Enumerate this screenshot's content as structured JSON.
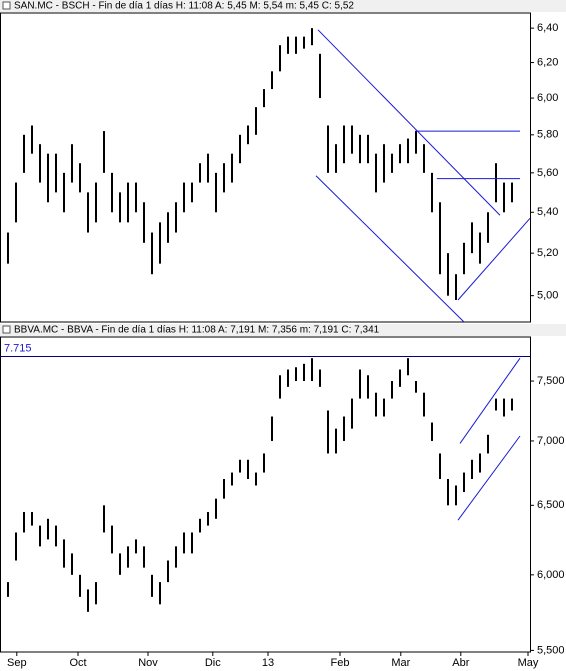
{
  "chart_data": [
    {
      "type": "range-bar",
      "title": "SAN.MC - BSCH - Fin de día 1 días H: 11:08 A: 5,45 M: 5,54 m: 5,45 C: 5,52",
      "log_scale": true,
      "color": "#000000",
      "xlim": [
        -1,
        65.25
      ],
      "ylim": [
        4.88,
        6.49
      ],
      "yticks": [
        {
          "value": 6.4,
          "label": "6,40"
        },
        {
          "value": 6.2,
          "label": "6,20"
        },
        {
          "value": 6,
          "label": "6,00"
        },
        {
          "value": 5.8,
          "label": "5,80"
        },
        {
          "value": 5.6,
          "label": "5,60"
        },
        {
          "value": 5.4,
          "label": "5,40"
        },
        {
          "value": 5.2,
          "label": "5,20"
        },
        {
          "value": 5,
          "label": "5,00"
        }
      ],
      "lows": [
        5.15,
        5.35,
        5.6,
        5.7,
        5.55,
        5.45,
        5.5,
        5.4,
        5.55,
        5.5,
        5.3,
        5.35,
        5.6,
        5.4,
        5.35,
        5.35,
        5.4,
        5.25,
        5.1,
        5.15,
        5.25,
        5.3,
        5.4,
        5.45,
        5.55,
        5.55,
        5.4,
        5.5,
        5.55,
        5.65,
        5.75,
        5.8,
        5.95,
        6.05,
        6.15,
        6.25,
        6.25,
        6.28,
        6.3,
        6.0,
        5.6,
        5.6,
        5.65,
        5.7,
        5.65,
        5.65,
        5.5,
        5.55,
        5.6,
        5.65,
        5.65,
        5.7,
        5.6,
        5.4,
        5.1,
        5.0,
        4.98,
        5.1,
        5.2,
        5.15,
        5.25,
        5.45,
        5.4,
        5.45
      ],
      "highs": [
        5.3,
        5.55,
        5.8,
        5.85,
        5.75,
        5.7,
        5.7,
        5.6,
        5.75,
        5.65,
        5.5,
        5.55,
        5.82,
        5.6,
        5.5,
        5.55,
        5.55,
        5.45,
        5.3,
        5.35,
        5.4,
        5.45,
        5.55,
        5.55,
        5.65,
        5.7,
        5.6,
        5.65,
        5.7,
        5.8,
        5.85,
        5.95,
        6.05,
        6.15,
        6.3,
        6.35,
        6.35,
        6.35,
        6.4,
        6.25,
        5.85,
        5.75,
        5.85,
        5.85,
        5.8,
        5.8,
        5.7,
        5.75,
        5.7,
        5.75,
        5.78,
        5.82,
        5.75,
        5.6,
        5.45,
        5.2,
        5.1,
        5.25,
        5.35,
        5.3,
        5.4,
        5.65,
        5.55,
        5.55
      ],
      "lines": [
        {
          "color": "#1a1ad6",
          "points": [
            [
              38.75,
              6.39
            ],
            [
              61.5,
              5.385
            ]
          ]
        },
        {
          "color": "#1a1ad6",
          "points": [
            [
              38.5,
              5.585
            ],
            [
              57,
              4.88
            ]
          ]
        },
        {
          "color": "#1a1ad6",
          "points": [
            [
              50.9,
              5.82
            ],
            [
              64,
              5.82
            ]
          ]
        },
        {
          "color": "#1a1ad6",
          "points": [
            [
              53.6,
              5.57
            ],
            [
              64,
              5.57
            ]
          ]
        },
        {
          "color": "#1a1ad6",
          "points": [
            [
              56.25,
              4.98
            ],
            [
              65.25,
              5.37
            ]
          ]
        }
      ]
    },
    {
      "type": "range-bar",
      "title": "BBVA.MC - BBVA - Fin de día 1 días H: 11:08 A: 7,191 M: 7,356 m: 7,191 C: 7,341",
      "log_scale": true,
      "color": "#000000",
      "xlim": [
        -1,
        65.25
      ],
      "ylim": [
        5.49,
        7.89
      ],
      "yticks": [
        {
          "value": 7.5,
          "label": "7,500"
        },
        {
          "value": 7,
          "label": "7,000"
        },
        {
          "value": 6.5,
          "label": "6,500"
        },
        {
          "value": 6,
          "label": "6,000"
        },
        {
          "value": 5.5,
          "label": "5,500"
        }
      ],
      "xticks": [
        {
          "value": 1.1,
          "label": "Sep"
        },
        {
          "value": 8.75,
          "label": "Oct"
        },
        {
          "value": 17.5,
          "label": "Nov"
        },
        {
          "value": 25.6,
          "label": "Dic"
        },
        {
          "value": 32.5,
          "label": "13"
        },
        {
          "value": 41.5,
          "label": "Feb"
        },
        {
          "value": 49.1,
          "label": "Mar"
        },
        {
          "value": 56.6,
          "label": "Abr"
        },
        {
          "value": 65,
          "label": "May"
        }
      ],
      "reference_line": {
        "value": 7.715,
        "label": "7.715",
        "color": "#000080"
      },
      "lows": [
        5.85,
        6.1,
        6.3,
        6.35,
        6.2,
        6.25,
        6.2,
        6.05,
        6.0,
        5.85,
        5.75,
        5.8,
        6.3,
        6.15,
        6.0,
        6.05,
        6.15,
        6.05,
        5.85,
        5.8,
        5.95,
        6.05,
        6.15,
        6.15,
        6.3,
        6.35,
        6.4,
        6.55,
        6.65,
        6.75,
        6.7,
        6.65,
        6.75,
        7.0,
        7.35,
        7.45,
        7.5,
        7.5,
        7.5,
        7.45,
        6.9,
        6.9,
        7.0,
        7.1,
        7.35,
        7.35,
        7.2,
        7.2,
        7.35,
        7.45,
        7.55,
        7.4,
        7.2,
        7.0,
        6.7,
        6.5,
        6.5,
        6.6,
        6.7,
        6.75,
        6.9,
        7.25,
        7.2,
        7.25
      ],
      "highs": [
        5.95,
        6.3,
        6.45,
        6.45,
        6.35,
        6.4,
        6.35,
        6.25,
        6.15,
        6.0,
        5.9,
        5.95,
        6.5,
        6.35,
        6.15,
        6.2,
        6.25,
        6.2,
        6.0,
        5.95,
        6.1,
        6.2,
        6.3,
        6.3,
        6.4,
        6.45,
        6.55,
        6.7,
        6.75,
        6.85,
        6.85,
        6.75,
        6.9,
        7.2,
        7.55,
        7.6,
        7.62,
        7.65,
        7.7,
        7.6,
        7.25,
        7.1,
        7.2,
        7.35,
        7.6,
        7.55,
        7.4,
        7.35,
        7.5,
        7.6,
        7.7,
        7.5,
        7.4,
        7.15,
        6.9,
        6.7,
        6.65,
        6.75,
        6.85,
        6.9,
        7.05,
        7.35,
        7.35,
        7.35
      ],
      "lines": [
        {
          "color": "#1a1ad6",
          "points": [
            [
              56.5,
              6.98
            ],
            [
              64,
              7.7
            ]
          ]
        },
        {
          "color": "#1a1ad6",
          "points": [
            [
              56.25,
              6.39
            ],
            [
              64,
              7.04
            ]
          ]
        }
      ]
    }
  ]
}
